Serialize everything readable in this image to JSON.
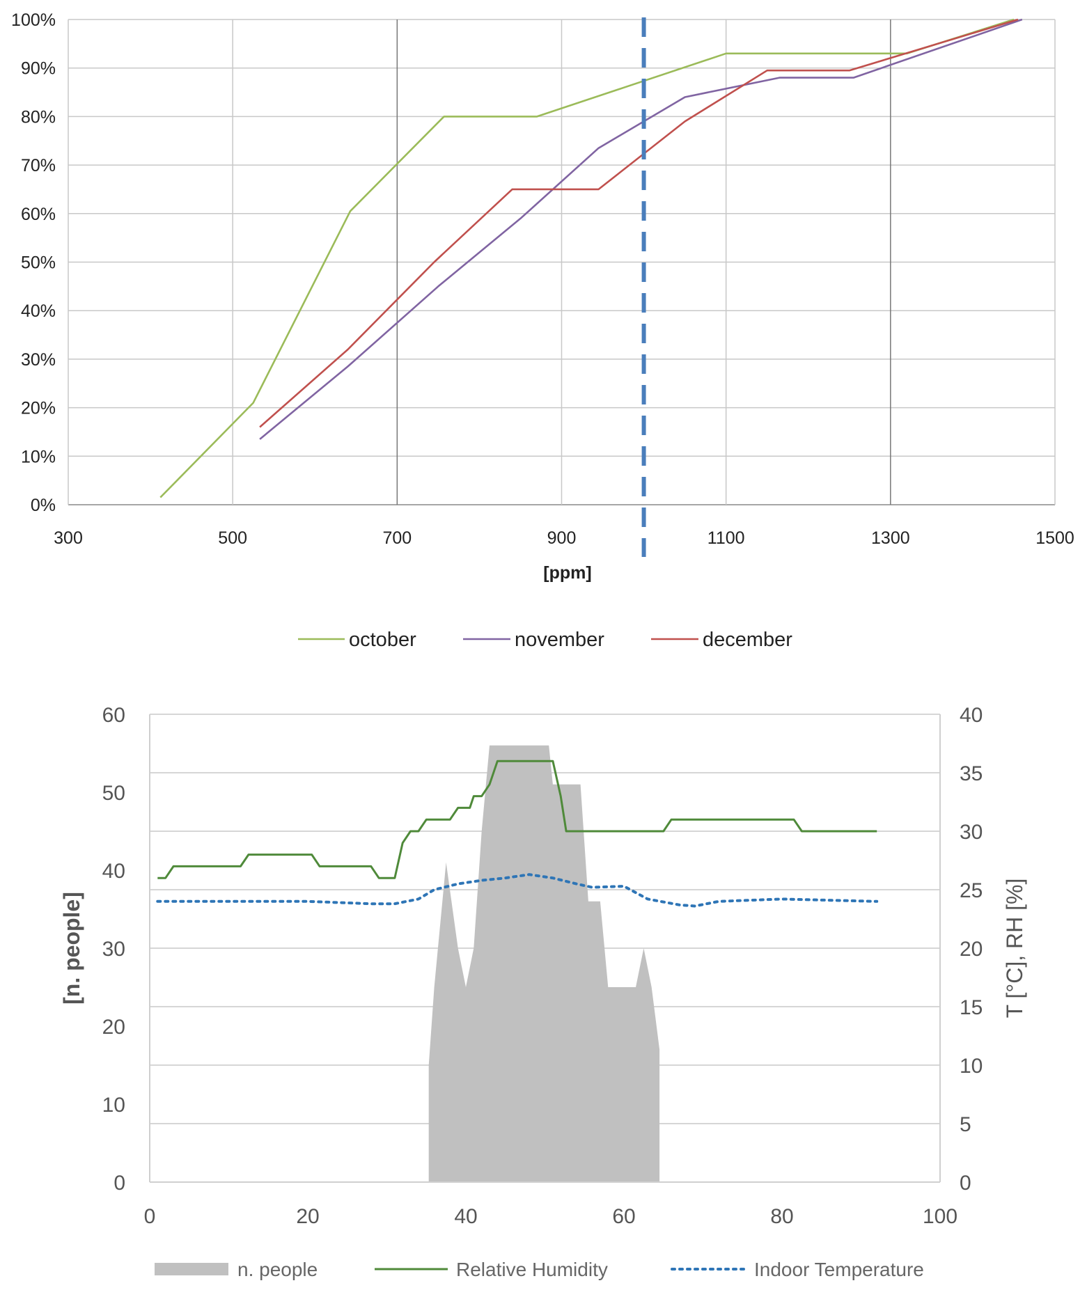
{
  "colors": {
    "october": "#9bbb59",
    "november": "#8064a2",
    "december": "#c0504d",
    "threshold": "#4a7ebb",
    "people": "#c0c0c0",
    "humidity": "#4f8a3a",
    "temperature": "#2e75b6"
  },
  "chart_data": [
    {
      "type": "line",
      "xlabel": "[ppm]",
      "ylabel": "",
      "xlim": [
        300,
        1500
      ],
      "ylim": [
        0,
        100
      ],
      "x_ticks": [
        "300",
        "500",
        "700",
        "900",
        "1100",
        "1300",
        "1500"
      ],
      "y_ticks": [
        "0%",
        "10%",
        "20%",
        "30%",
        "40%",
        "50%",
        "60%",
        "70%",
        "80%",
        "90%",
        "100%"
      ],
      "grid": true,
      "legend_position": "bottom",
      "reference_line_x": 1000,
      "series": [
        {
          "name": "october",
          "color_key": "october",
          "points": [
            [
              412,
              1.5
            ],
            [
              525,
              21
            ],
            [
              643,
              60.5
            ],
            [
              757,
              80
            ],
            [
              870,
              80
            ],
            [
              1100,
              93
            ],
            [
              1320,
              93
            ],
            [
              1450,
              100
            ]
          ]
        },
        {
          "name": "november",
          "color_key": "november",
          "points": [
            [
              533,
              13.5
            ],
            [
              640,
              28.5
            ],
            [
              750,
              45
            ],
            [
              850,
              59
            ],
            [
              945,
              73.5
            ],
            [
              1050,
              84
            ],
            [
              1165,
              88
            ],
            [
              1255,
              88
            ],
            [
              1460,
              100
            ]
          ]
        },
        {
          "name": "december",
          "color_key": "december",
          "points": [
            [
              533,
              16
            ],
            [
              640,
              32
            ],
            [
              745,
              50
            ],
            [
              840,
              65
            ],
            [
              945,
              65
            ],
            [
              1050,
              79
            ],
            [
              1150,
              89.5
            ],
            [
              1250,
              89.5
            ],
            [
              1455,
              100
            ]
          ]
        }
      ]
    },
    {
      "type": "area",
      "xlabel": "",
      "ylabel_left": "[n. people]",
      "ylabel_right": "T [°C], RH [%]",
      "xlim": [
        0,
        100
      ],
      "ylim_left": [
        0,
        60
      ],
      "ylim_right": [
        0,
        40
      ],
      "x_ticks": [
        "0",
        "20",
        "40",
        "60",
        "80",
        "100"
      ],
      "y_ticks_left": [
        "0",
        "10",
        "20",
        "30",
        "40",
        "50",
        "60"
      ],
      "y_ticks_right": [
        "0",
        "5",
        "10",
        "15",
        "20",
        "25",
        "30",
        "35",
        "40"
      ],
      "grid": true,
      "legend_position": "bottom",
      "series": [
        {
          "name": "n. people",
          "axis": "left",
          "style": "area",
          "color_key": "people",
          "points": [
            [
              35.3,
              0
            ],
            [
              35.3,
              15
            ],
            [
              36,
              25
            ],
            [
              37.5,
              41
            ],
            [
              39,
              30
            ],
            [
              40,
              25
            ],
            [
              41,
              30
            ],
            [
              42,
              45
            ],
            [
              43,
              56
            ],
            [
              50.5,
              56
            ],
            [
              51,
              51
            ],
            [
              54.5,
              51
            ],
            [
              55.5,
              36
            ],
            [
              57,
              36
            ],
            [
              58,
              25
            ],
            [
              61.5,
              25
            ],
            [
              62.5,
              30
            ],
            [
              63.5,
              25
            ],
            [
              64.5,
              17
            ],
            [
              64.5,
              0
            ]
          ]
        },
        {
          "name": "Relative Humidity",
          "axis": "right",
          "style": "solid",
          "color_key": "humidity",
          "points": [
            [
              1,
              26
            ],
            [
              2,
              26
            ],
            [
              3,
              27
            ],
            [
              11.5,
              27
            ],
            [
              12.5,
              28
            ],
            [
              20.5,
              28
            ],
            [
              21.5,
              27
            ],
            [
              28,
              27
            ],
            [
              29,
              26
            ],
            [
              31,
              26
            ],
            [
              32,
              29
            ],
            [
              33,
              30
            ],
            [
              34,
              30
            ],
            [
              35,
              31
            ],
            [
              38,
              31
            ],
            [
              39,
              32
            ],
            [
              40.5,
              32
            ],
            [
              41,
              33
            ],
            [
              42,
              33
            ],
            [
              43,
              34
            ],
            [
              44,
              36
            ],
            [
              51,
              36
            ],
            [
              52,
              33
            ],
            [
              52.7,
              30
            ],
            [
              65,
              30
            ],
            [
              66,
              31
            ],
            [
              81.5,
              31
            ],
            [
              82.5,
              30
            ],
            [
              92,
              30
            ]
          ]
        },
        {
          "name": "Indoor Temperature",
          "axis": "right",
          "style": "dotted",
          "color_key": "temperature",
          "points": [
            [
              1,
              24
            ],
            [
              20,
              24
            ],
            [
              28,
              23.8
            ],
            [
              31,
              23.8
            ],
            [
              34,
              24.2
            ],
            [
              36,
              25
            ],
            [
              39,
              25.5
            ],
            [
              42,
              25.8
            ],
            [
              45,
              26
            ],
            [
              48,
              26.3
            ],
            [
              51,
              26
            ],
            [
              54,
              25.5
            ],
            [
              56,
              25.2
            ],
            [
              60,
              25.3
            ],
            [
              63,
              24.2
            ],
            [
              67,
              23.7
            ],
            [
              69,
              23.6
            ],
            [
              72,
              24
            ],
            [
              80,
              24.2
            ],
            [
              92,
              24
            ]
          ]
        }
      ]
    }
  ]
}
